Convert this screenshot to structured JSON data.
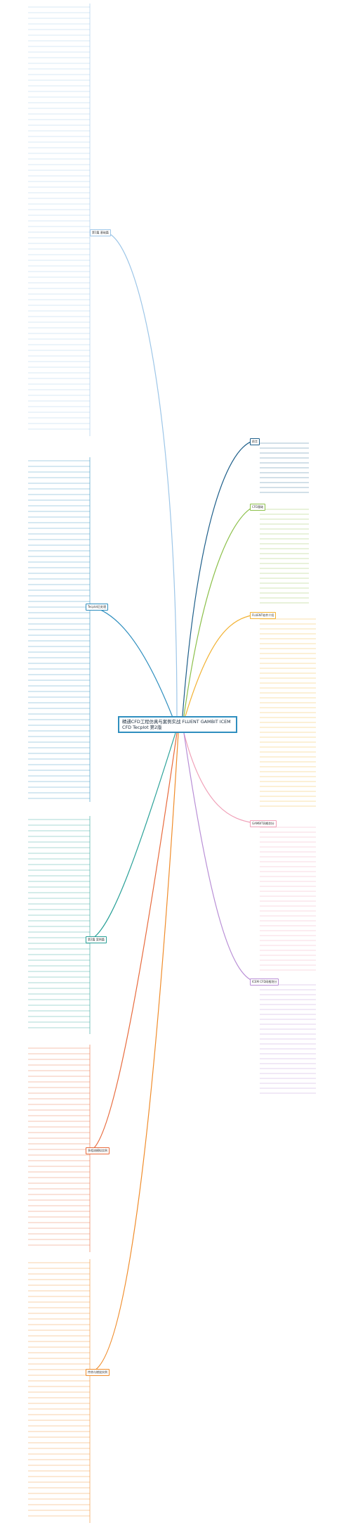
{
  "root": {
    "title": "精通CFD工程仿真与案例实战 FLUENT GAMBIT ICEM CFD Tecplot 第2版"
  },
  "colors": {
    "blue": "#2f8fbf",
    "darkblue": "#1e5f8a",
    "green": "#8cc04a",
    "yellow": "#f2b233",
    "pink": "#f0a0b8",
    "purple": "#b98fd6",
    "teal": "#2aa198",
    "red": "#e86a3c",
    "orange": "#f08c2a",
    "lightblue": "#9dc6e8"
  },
  "branches": [
    {
      "label": "第1篇 基础篇",
      "color": "lightblue"
    },
    {
      "label": "前言",
      "color": "darkblue"
    },
    {
      "label": "CFD基础",
      "color": "green"
    },
    {
      "label": "FLUENT软件介绍",
      "color": "yellow"
    },
    {
      "label": "GAMBIT网格划分",
      "color": "pink"
    },
    {
      "label": "ICEM CFD网格划分",
      "color": "purple"
    },
    {
      "label": "Tecplot后处理",
      "color": "blue"
    },
    {
      "label": "第2篇 案例篇",
      "color": "teal"
    },
    {
      "label": "多相流模拟实例",
      "color": "red"
    },
    {
      "label": "传热与燃烧实例",
      "color": "orange"
    }
  ]
}
